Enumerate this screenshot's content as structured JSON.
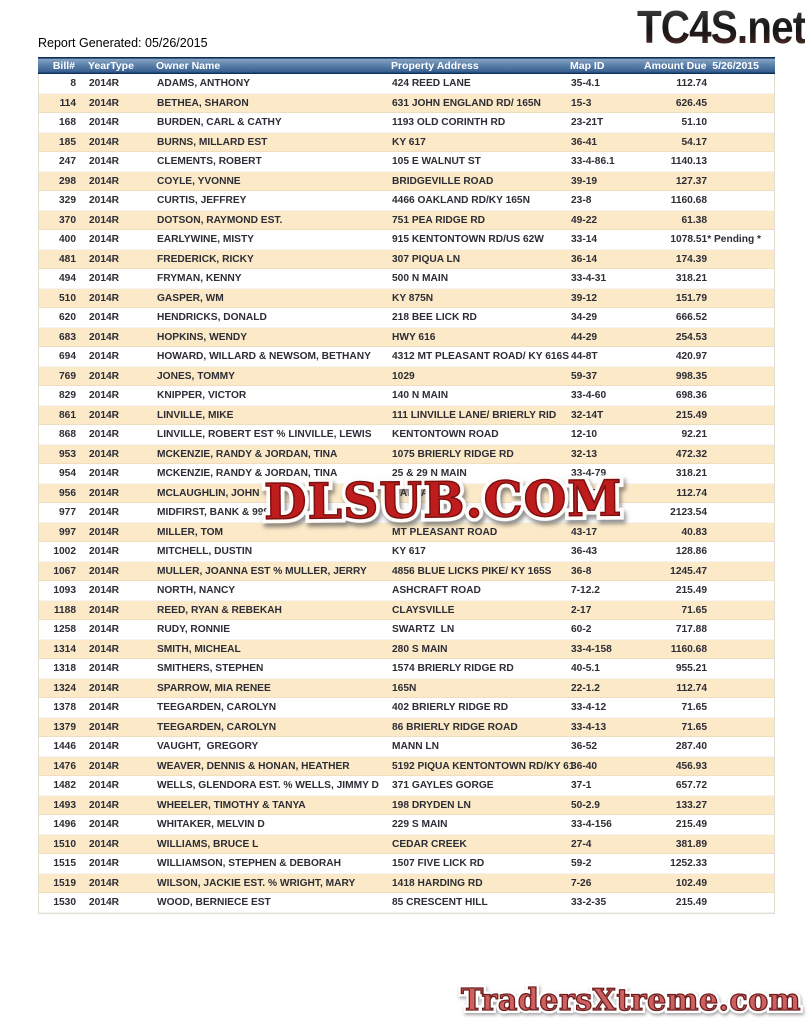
{
  "page": {
    "report_generated": "Report Generated: 05/26/2015"
  },
  "branding": {
    "top_logo": "TC4S.net",
    "watermark": "DLSUB.COM",
    "bottom_logo": "TradersXtreme.com"
  },
  "colors": {
    "header_blue": "#5d82ab",
    "header_edge_navy": "#0e3056",
    "row_alt_tan": "#fbe9c8",
    "row_text": "#2d2d35",
    "watermark_red": "#bf1d1d",
    "bottom_logo_red": "#cd6161"
  },
  "table": {
    "columns": [
      "Bill#",
      "YearType",
      "Owner Name",
      "Property Address",
      "Map ID",
      "Amount Due  5/26/2015"
    ],
    "rows": [
      {
        "bill": "8",
        "year": "2014R",
        "owner": "ADAMS, ANTHONY",
        "address": "424 REED LANE",
        "map_id": "35-4.1",
        "amount": "112.74",
        "amount_suffix": ""
      },
      {
        "bill": "114",
        "year": "2014R",
        "owner": "BETHEA, SHARON",
        "address": "631 JOHN ENGLAND RD/ 165N",
        "map_id": "15-3",
        "amount": "626.45",
        "amount_suffix": ""
      },
      {
        "bill": "168",
        "year": "2014R",
        "owner": "BURDEN, CARL & CATHY",
        "address": "1193 OLD CORINTH RD",
        "map_id": "23-21T",
        "amount": "51.10",
        "amount_suffix": ""
      },
      {
        "bill": "185",
        "year": "2014R",
        "owner": "BURNS, MILLARD EST",
        "address": "KY 617",
        "map_id": "36-41",
        "amount": "54.17",
        "amount_suffix": ""
      },
      {
        "bill": "247",
        "year": "2014R",
        "owner": "CLEMENTS, ROBERT",
        "address": "105 E WALNUT ST",
        "map_id": "33-4-86.1",
        "amount": "1140.13",
        "amount_suffix": ""
      },
      {
        "bill": "298",
        "year": "2014R",
        "owner": "COYLE, YVONNE",
        "address": "BRIDGEVILLE ROAD",
        "map_id": "39-19",
        "amount": "127.37",
        "amount_suffix": ""
      },
      {
        "bill": "329",
        "year": "2014R",
        "owner": "CURTIS, JEFFREY",
        "address": "4466 OAKLAND RD/KY 165N",
        "map_id": "23-8",
        "amount": "1160.68",
        "amount_suffix": ""
      },
      {
        "bill": "370",
        "year": "2014R",
        "owner": "DOTSON, RAYMOND EST.",
        "address": "751 PEA RIDGE RD",
        "map_id": "49-22",
        "amount": "61.38",
        "amount_suffix": ""
      },
      {
        "bill": "400",
        "year": "2014R",
        "owner": "EARLYWINE, MISTY",
        "address": "915 KENTONTOWN RD/US 62W",
        "map_id": "33-14",
        "amount": "1078.51",
        "amount_suffix": "* Pending *"
      },
      {
        "bill": "481",
        "year": "2014R",
        "owner": "FREDERICK, RICKY",
        "address": "307 PIQUA LN",
        "map_id": "36-14",
        "amount": "174.39",
        "amount_suffix": ""
      },
      {
        "bill": "494",
        "year": "2014R",
        "owner": "FRYMAN, KENNY",
        "address": "500 N MAIN",
        "map_id": "33-4-31",
        "amount": "318.21",
        "amount_suffix": ""
      },
      {
        "bill": "510",
        "year": "2014R",
        "owner": "GASPER, WM",
        "address": "KY 875N",
        "map_id": "39-12",
        "amount": "151.79",
        "amount_suffix": ""
      },
      {
        "bill": "620",
        "year": "2014R",
        "owner": "HENDRICKS, DONALD",
        "address": "218 BEE LICK RD",
        "map_id": "34-29",
        "amount": "666.52",
        "amount_suffix": ""
      },
      {
        "bill": "683",
        "year": "2014R",
        "owner": "HOPKINS, WENDY",
        "address": "HWY 616",
        "map_id": "44-29",
        "amount": "254.53",
        "amount_suffix": ""
      },
      {
        "bill": "694",
        "year": "2014R",
        "owner": "HOWARD, WILLARD & NEWSOM, BETHANY",
        "address": "4312 MT PLEASANT ROAD/ KY 616S",
        "map_id": "44-8T",
        "amount": "420.97",
        "amount_suffix": ""
      },
      {
        "bill": "769",
        "year": "2014R",
        "owner": "JONES, TOMMY",
        "address": "1029",
        "map_id": "59-37",
        "amount": "998.35",
        "amount_suffix": ""
      },
      {
        "bill": "829",
        "year": "2014R",
        "owner": "KNIPPER, VICTOR",
        "address": "140 N MAIN",
        "map_id": "33-4-60",
        "amount": "698.36",
        "amount_suffix": ""
      },
      {
        "bill": "861",
        "year": "2014R",
        "owner": "LINVILLE, MIKE",
        "address": "111 LINVILLE LANE/ BRIERLY RID",
        "map_id": "32-14T",
        "amount": "215.49",
        "amount_suffix": ""
      },
      {
        "bill": "868",
        "year": "2014R",
        "owner": "LINVILLE, ROBERT EST % LINVILLE, LEWIS",
        "address": "KENTONTOWN ROAD",
        "map_id": "12-10",
        "amount": "92.21",
        "amount_suffix": ""
      },
      {
        "bill": "953",
        "year": "2014R",
        "owner": "MCKENZIE, RANDY & JORDAN, TINA",
        "address": "1075 BRIERLY RIDGE RD",
        "map_id": "32-13",
        "amount": "472.32",
        "amount_suffix": ""
      },
      {
        "bill": "954",
        "year": "2014R",
        "owner": "MCKENZIE, RANDY & JORDAN, TINA",
        "address": "25 & 29 N MAIN",
        "map_id": "33-4-79",
        "amount": "318.21",
        "amount_suffix": ""
      },
      {
        "bill": "956",
        "year": "2014R",
        "owner": "MCLAUGHLIN, JOHN",
        "address": "OAKLAND RD",
        "map_id": "31-15T",
        "amount": "112.74",
        "amount_suffix": ""
      },
      {
        "bill": "977",
        "year": "2014R",
        "owner": "MIDFIRST, BANK & 999",
        "address": "",
        "map_id": "27-5",
        "amount": "2123.54",
        "amount_suffix": ""
      },
      {
        "bill": "997",
        "year": "2014R",
        "owner": "MILLER, TOM",
        "address": "MT PLEASANT ROAD",
        "map_id": "43-17",
        "amount": "40.83",
        "amount_suffix": ""
      },
      {
        "bill": "1002",
        "year": "2014R",
        "owner": "MITCHELL, DUSTIN",
        "address": "KY 617",
        "map_id": "36-43",
        "amount": "128.86",
        "amount_suffix": ""
      },
      {
        "bill": "1067",
        "year": "2014R",
        "owner": "MULLER, JOANNA EST % MULLER, JERRY",
        "address": "4856 BLUE LICKS PIKE/ KY 165S",
        "map_id": "36-8",
        "amount": "1245.47",
        "amount_suffix": ""
      },
      {
        "bill": "1093",
        "year": "2014R",
        "owner": "NORTH, NANCY",
        "address": "ASHCRAFT ROAD",
        "map_id": "7-12.2",
        "amount": "215.49",
        "amount_suffix": ""
      },
      {
        "bill": "1188",
        "year": "2014R",
        "owner": "REED, RYAN & REBEKAH",
        "address": "CLAYSVILLE",
        "map_id": "2-17",
        "amount": "71.65",
        "amount_suffix": ""
      },
      {
        "bill": "1258",
        "year": "2014R",
        "owner": "RUDY, RONNIE",
        "address": "SWARTZ  LN",
        "map_id": "60-2",
        "amount": "717.88",
        "amount_suffix": ""
      },
      {
        "bill": "1314",
        "year": "2014R",
        "owner": "SMITH, MICHEAL",
        "address": "280 S MAIN",
        "map_id": "33-4-158",
        "amount": "1160.68",
        "amount_suffix": ""
      },
      {
        "bill": "1318",
        "year": "2014R",
        "owner": "SMITHERS, STEPHEN",
        "address": "1574 BRIERLY RIDGE RD",
        "map_id": "40-5.1",
        "amount": "955.21",
        "amount_suffix": ""
      },
      {
        "bill": "1324",
        "year": "2014R",
        "owner": "SPARROW, MIA RENEE",
        "address": "165N",
        "map_id": "22-1.2",
        "amount": "112.74",
        "amount_suffix": ""
      },
      {
        "bill": "1378",
        "year": "2014R",
        "owner": "TEEGARDEN, CAROLYN",
        "address": "402 BRIERLY RIDGE RD",
        "map_id": "33-4-12",
        "amount": "71.65",
        "amount_suffix": ""
      },
      {
        "bill": "1379",
        "year": "2014R",
        "owner": "TEEGARDEN, CAROLYN",
        "address": "86 BRIERLY RIDGE ROAD",
        "map_id": "33-4-13",
        "amount": "71.65",
        "amount_suffix": ""
      },
      {
        "bill": "1446",
        "year": "2014R",
        "owner": "VAUGHT,  GREGORY",
        "address": "MANN LN",
        "map_id": "36-52",
        "amount": "287.40",
        "amount_suffix": ""
      },
      {
        "bill": "1476",
        "year": "2014R",
        "owner": "WEAVER, DENNIS & HONAN, HEATHER",
        "address": "5192 PIQUA KENTONTOWN RD/KY 61",
        "map_id": "36-40",
        "amount": "456.93",
        "amount_suffix": ""
      },
      {
        "bill": "1482",
        "year": "2014R",
        "owner": "WELLS, GLENDORA EST. % WELLS, JIMMY D",
        "address": "371 GAYLES GORGE",
        "map_id": "37-1",
        "amount": "657.72",
        "amount_suffix": ""
      },
      {
        "bill": "1493",
        "year": "2014R",
        "owner": "WHEELER, TIMOTHY & TANYA",
        "address": "198 DRYDEN LN",
        "map_id": "50-2.9",
        "amount": "133.27",
        "amount_suffix": ""
      },
      {
        "bill": "1496",
        "year": "2014R",
        "owner": "WHITAKER, MELVIN D",
        "address": "229 S MAIN",
        "map_id": "33-4-156",
        "amount": "215.49",
        "amount_suffix": ""
      },
      {
        "bill": "1510",
        "year": "2014R",
        "owner": "WILLIAMS, BRUCE L",
        "address": "CEDAR CREEK",
        "map_id": "27-4",
        "amount": "381.89",
        "amount_suffix": ""
      },
      {
        "bill": "1515",
        "year": "2014R",
        "owner": "WILLIAMSON, STEPHEN & DEBORAH",
        "address": "1507 FIVE LICK RD",
        "map_id": "59-2",
        "amount": "1252.33",
        "amount_suffix": ""
      },
      {
        "bill": "1519",
        "year": "2014R",
        "owner": "WILSON, JACKIE EST. % WRIGHT, MARY",
        "address": "1418 HARDING RD",
        "map_id": "7-26",
        "amount": "102.49",
        "amount_suffix": ""
      },
      {
        "bill": "1530",
        "year": "2014R",
        "owner": "WOOD, BERNIECE EST",
        "address": "85 CRESCENT HILL",
        "map_id": "33-2-35",
        "amount": "215.49",
        "amount_suffix": ""
      }
    ]
  }
}
